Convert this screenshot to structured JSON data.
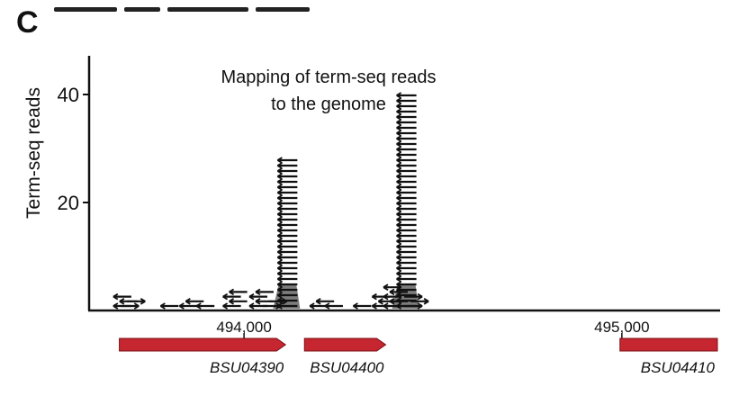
{
  "panel_letter": "C",
  "chart_data": {
    "type": "bar",
    "subtype": "read pileup (stacked arrow glyphs)",
    "title": "Mapping of term-seq reads\nto the genome",
    "xlabel": "",
    "ylabel": "Term-seq reads",
    "yticks": [
      20,
      40
    ],
    "ylim": [
      0,
      45
    ],
    "xlim": [
      493590,
      495260
    ],
    "xticks": [
      {
        "value": 494000,
        "label": "494,000"
      },
      {
        "value": 495000,
        "label": "495,000"
      }
    ],
    "grid": false,
    "series": [
      {
        "values": [
          {
            "x": 493685,
            "y": 3,
            "dir": "left"
          },
          {
            "x": 493705,
            "y": 2,
            "dir": "right"
          },
          {
            "x": 493810,
            "y": 1,
            "dir": "left"
          },
          {
            "x": 493860,
            "y": 2,
            "dir": "left"
          },
          {
            "x": 493905,
            "y": 1,
            "dir": "left"
          },
          {
            "x": 493975,
            "y": 4,
            "dir": "left"
          },
          {
            "x": 494045,
            "y": 4,
            "dir": "left"
          },
          {
            "x": 494080,
            "y": 2,
            "dir": "right"
          },
          {
            "x": 494115,
            "y": 28,
            "dir": "left"
          },
          {
            "x": 494205,
            "y": 2,
            "dir": "left"
          },
          {
            "x": 494245,
            "y": 1,
            "dir": "left"
          },
          {
            "x": 494320,
            "y": 1,
            "dir": "left"
          },
          {
            "x": 494370,
            "y": 3,
            "dir": "left"
          },
          {
            "x": 494400,
            "y": 5,
            "dir": "left"
          },
          {
            "x": 494430,
            "y": 40,
            "dir": "left"
          },
          {
            "x": 494455,
            "y": 3,
            "dir": "right"
          }
        ]
      }
    ],
    "genes": [
      {
        "name": "BSU04390",
        "start": 493670,
        "end": 494110,
        "strand": "+",
        "color": "#c62630"
      },
      {
        "name": "BSU04400",
        "start": 494160,
        "end": 494375,
        "strand": "+",
        "color": "#c62630"
      },
      {
        "name": "BSU04410",
        "start": 494995,
        "end": 495260,
        "strand": "+",
        "color": "#c62630"
      }
    ],
    "colors": {
      "reads": "#111111",
      "gene": "#c62630"
    }
  }
}
